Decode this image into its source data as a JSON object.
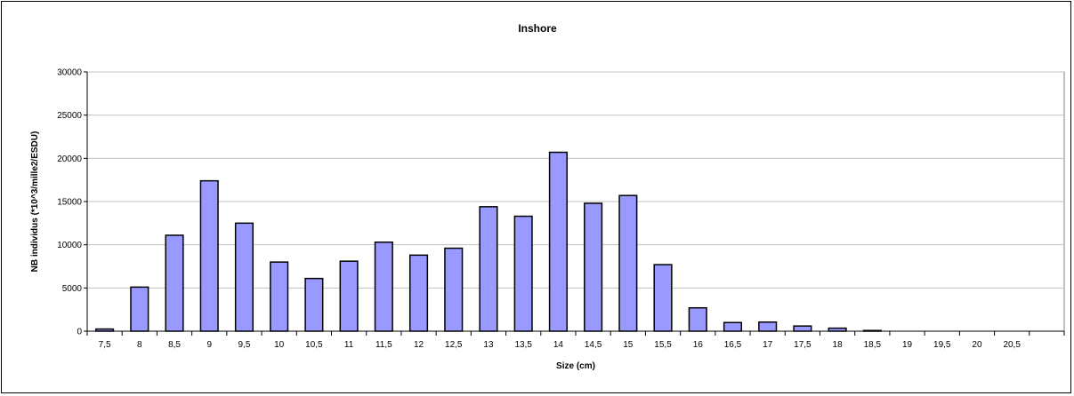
{
  "chart_data": {
    "type": "bar",
    "title": "Inshore",
    "xlabel": "Size (cm)",
    "ylabel": "NB individus (*10^3/mille2/ESDU)",
    "ylim": [
      0,
      30000
    ],
    "yticks": [
      0,
      5000,
      10000,
      15000,
      20000,
      25000,
      30000
    ],
    "grid": true,
    "legend": "none",
    "categories": [
      "7,5",
      "8",
      "8,5",
      "9",
      "9,5",
      "10",
      "10,5",
      "11",
      "11,5",
      "12",
      "12,5",
      "13",
      "13,5",
      "14",
      "14,5",
      "15",
      "15,5",
      "16",
      "16,5",
      "17",
      "17,5",
      "18",
      "18,5",
      "19",
      "19,5",
      "20",
      "20,5",
      ""
    ],
    "values": [
      250,
      5100,
      11100,
      17400,
      12500,
      8000,
      6100,
      8100,
      10300,
      8800,
      9600,
      14400,
      13300,
      20700,
      14800,
      15700,
      7700,
      2700,
      1000,
      1050,
      600,
      350,
      80,
      0,
      0,
      0,
      0,
      0
    ],
    "colors": {
      "bar_fill": "#9999ff",
      "bar_stroke": "#000000",
      "plot_bg": "#ffffff",
      "grid": "#c0c0c0",
      "axis": "#000000"
    }
  }
}
